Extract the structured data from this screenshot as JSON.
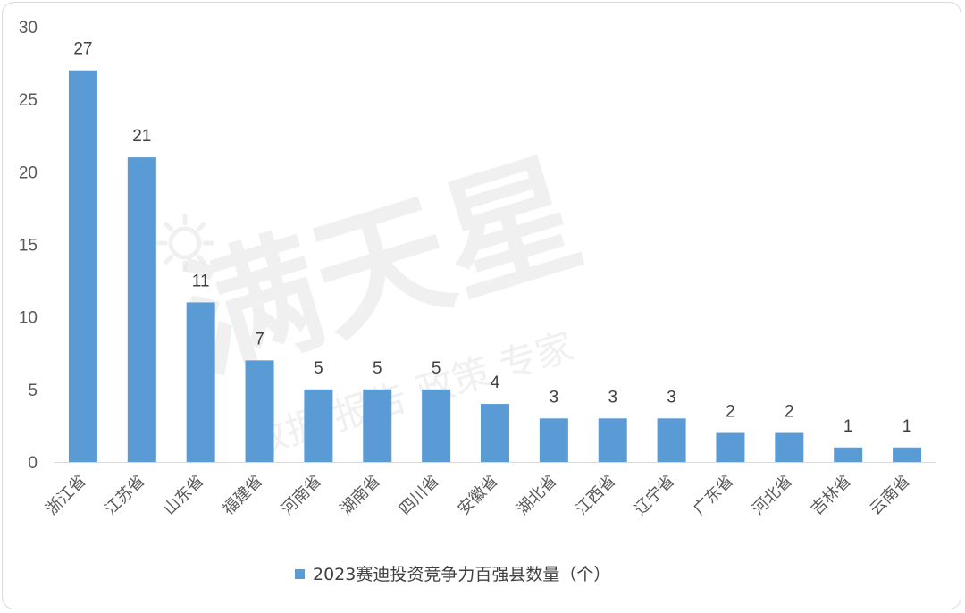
{
  "chart_data": {
    "type": "bar",
    "categories": [
      "浙江省",
      "江苏省",
      "山东省",
      "福建省",
      "河南省",
      "湖南省",
      "四川省",
      "安徽省",
      "湖北省",
      "江西省",
      "辽宁省",
      "广东省",
      "河北省",
      "吉林省",
      "云南省"
    ],
    "series": [
      {
        "name": "2023赛迪投资竞争力百强县数量（个）",
        "values": [
          27,
          21,
          11,
          7,
          5,
          5,
          5,
          4,
          3,
          3,
          3,
          2,
          2,
          1,
          1
        ]
      }
    ],
    "y_ticks": [
      0,
      5,
      10,
      15,
      20,
      25,
      30
    ],
    "ylim": [
      0,
      30
    ],
    "grid": false,
    "legend": "bottom-center",
    "data_labels": true,
    "bar_color": "#5b9bd5",
    "watermark": {
      "main": "满天星",
      "sub": "数据 报告 政策 专家"
    }
  }
}
